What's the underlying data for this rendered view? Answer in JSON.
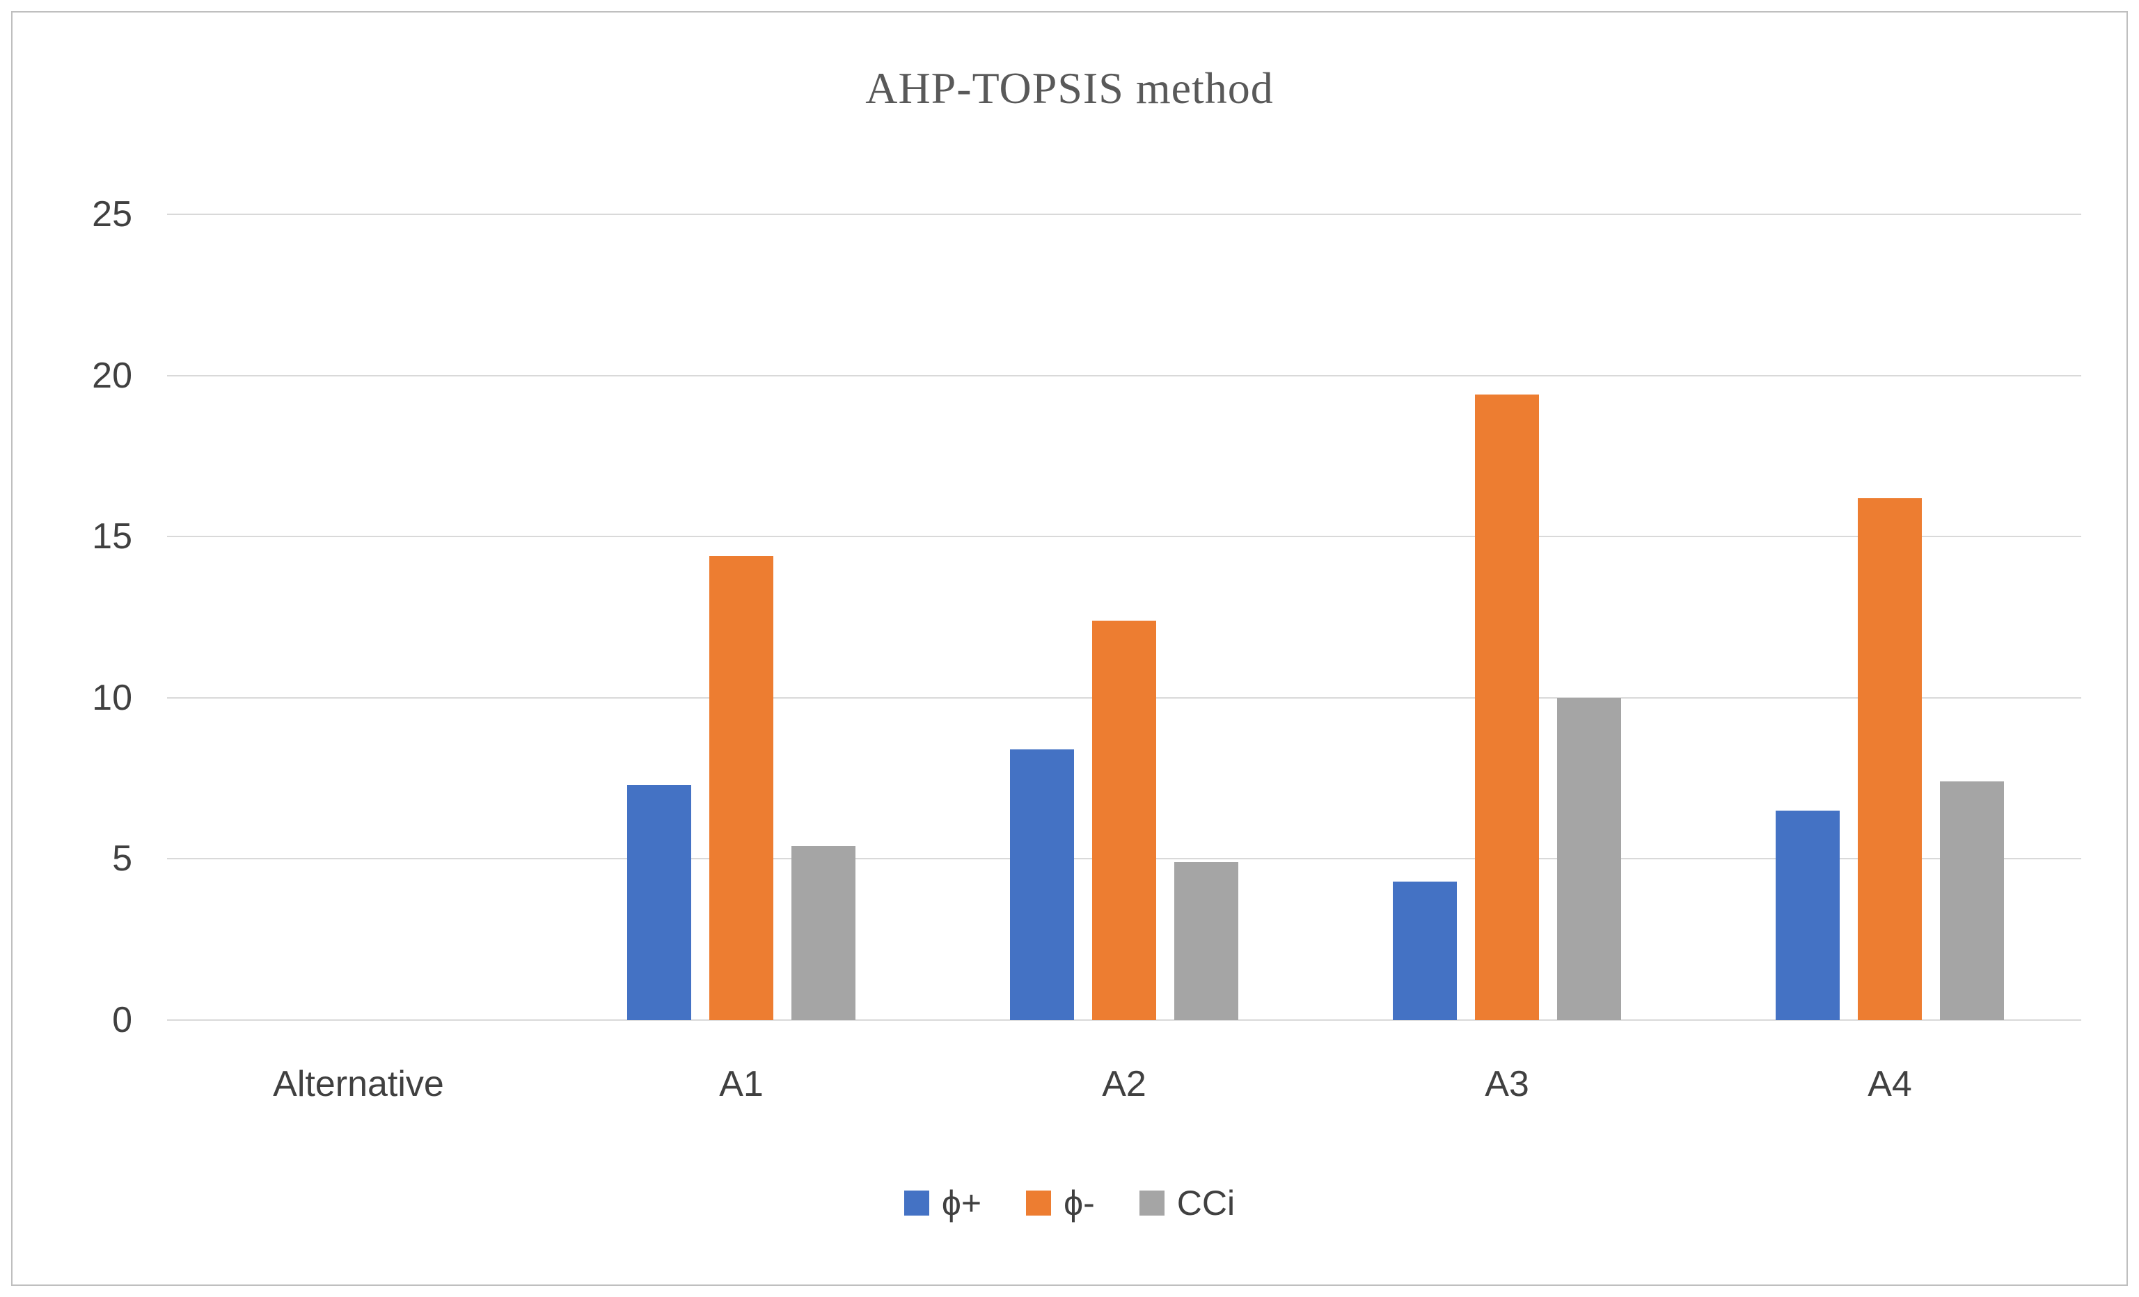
{
  "chart_data": {
    "type": "bar",
    "title": "AHP-TOPSIS method",
    "categories": [
      "Alternative",
      "A1",
      "A2",
      "A3",
      "A4"
    ],
    "series": [
      {
        "name": "ϕ+",
        "color": "#4472C4",
        "values": [
          null,
          7.3,
          8.4,
          4.3,
          6.5
        ]
      },
      {
        "name": "ϕ-",
        "color": "#ED7D31",
        "values": [
          null,
          14.4,
          12.4,
          19.4,
          16.2
        ]
      },
      {
        "name": "CCi",
        "color": "#A5A5A5",
        "values": [
          null,
          5.4,
          4.9,
          10.0,
          7.4
        ]
      }
    ],
    "xlabel": "",
    "ylabel": "",
    "ylim": [
      0,
      25
    ],
    "yticks": [
      0,
      5,
      10,
      15,
      20,
      25
    ],
    "grid": true,
    "legend_position": "bottom",
    "colors": {
      "gridline": "#d9d9d9",
      "text": "#404040",
      "title_text": "#595959",
      "frame_border": "#bfbfbf"
    }
  }
}
